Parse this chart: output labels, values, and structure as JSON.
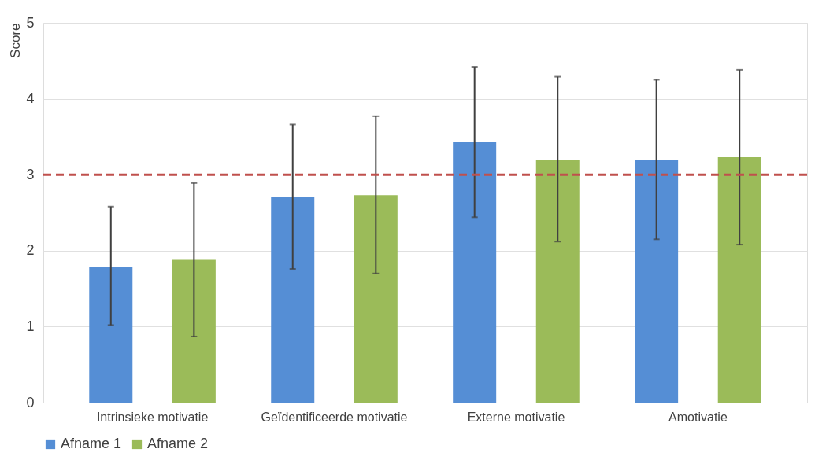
{
  "chart_data": {
    "type": "bar",
    "ylabel": "Score",
    "categories": [
      "Intrinsieke motivatie",
      "Geïdentificeerde motivatie",
      "Externe motivatie",
      "Amotivatie"
    ],
    "series": [
      {
        "name": "Afname 1",
        "color": "#558ed5",
        "values": [
          1.79,
          2.71,
          3.43,
          3.2
        ],
        "errors": [
          [
            1.02,
            2.58
          ],
          [
            1.76,
            3.66
          ],
          [
            2.44,
            4.42
          ],
          [
            2.15,
            4.25
          ]
        ]
      },
      {
        "name": "Afname 2",
        "color": "#9bbb59",
        "values": [
          1.88,
          2.73,
          3.2,
          3.23
        ],
        "errors": [
          [
            0.87,
            2.89
          ],
          [
            1.7,
            3.77
          ],
          [
            2.12,
            4.29
          ],
          [
            2.08,
            4.38
          ]
        ]
      }
    ],
    "ylim": [
      0,
      5
    ],
    "yticks": [
      0,
      1,
      2,
      3,
      4,
      5
    ],
    "grid": "y",
    "legend": "bottom",
    "ref_lines": [
      {
        "axis": "y",
        "value": 3,
        "color": "#c0504d",
        "line_style": "dashed"
      }
    ]
  }
}
